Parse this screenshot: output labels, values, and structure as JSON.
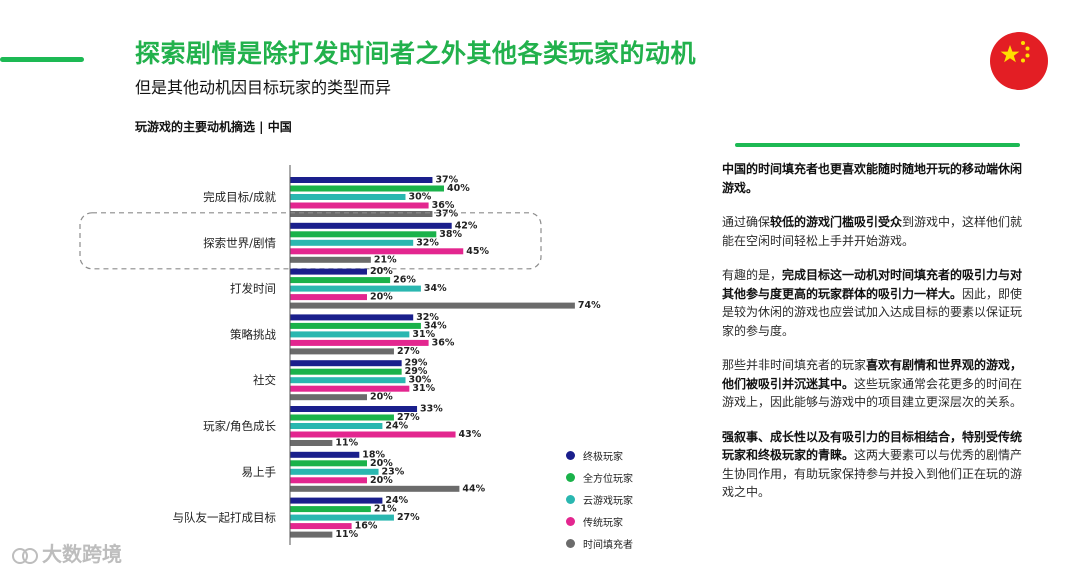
{
  "header": {
    "title": "探索剧情是除打发时间者之外其他各类玩家的动机",
    "subtitle": "但是其他动机因目标玩家的类型而异"
  },
  "chart_data": {
    "type": "bar",
    "orientation": "horizontal",
    "title": "玩游戏的主要动机摘选 | 中国",
    "categories": [
      "完成目标/成就",
      "探索世界/剧情",
      "打发时间",
      "策略挑战",
      "社交",
      "玩家/角色成长",
      "易上手",
      "与队友一起打成目标"
    ],
    "highlighted_category": "探索世界/剧情",
    "series": [
      {
        "name": "终极玩家",
        "color": "#1a1f8c",
        "values": [
          37,
          42,
          20,
          32,
          29,
          33,
          18,
          24
        ]
      },
      {
        "name": "全方位玩家",
        "color": "#1ab24a",
        "values": [
          40,
          38,
          26,
          34,
          29,
          27,
          20,
          21
        ]
      },
      {
        "name": "云游戏玩家",
        "color": "#2ab7b0",
        "values": [
          30,
          32,
          34,
          31,
          30,
          24,
          23,
          27
        ]
      },
      {
        "name": "传统玩家",
        "color": "#e3268f",
        "values": [
          36,
          45,
          20,
          36,
          31,
          43,
          20,
          16
        ]
      },
      {
        "name": "时间填充者",
        "color": "#6b6b6b",
        "values": [
          37,
          21,
          74,
          27,
          20,
          11,
          44,
          11
        ]
      }
    ],
    "value_suffix": "%",
    "xlim": [
      0,
      75
    ],
    "legend_position": "bottom-right"
  },
  "panel": {
    "p1_b": "中国的时间填充者也更喜欢能随时随地开玩的移动端休闲游戏。",
    "p2_a": "通过确保",
    "p2_b": "较低的游戏门槛吸引受众",
    "p2_c": "到游戏中，这样他们就能在空闲时间轻松上手并开始游戏。",
    "p3_a": "有趣的是，",
    "p3_b": "完成目标这一动机对时间填充者的吸引力与对其他参与度更高的玩家群体的吸引力一样大。",
    "p3_c": "因此，即使是较为休闲的游戏也应尝试加入达成目标的要素以保证玩家的参与度。",
    "p4_a": "那些并非时间填充者的玩家",
    "p4_b": "喜欢有剧情和世界观的游戏，他们被吸引并沉迷其中。",
    "p4_c": "这些玩家通常会花更多的时间在游戏上，因此能够与游戏中的项目建立更深层次的关系。",
    "p5_b": "强叙事、成长性以及有吸引力的目标相结合，特别受传统玩家和终极玩家的青睐。",
    "p5_c": "这两大要素可以与优秀的剧情产生协同作用，有助玩家保持参与并投入到他们正在玩的游戏之中。"
  },
  "watermark": {
    "text": "大数跨境"
  },
  "flag": {
    "name": "china-flag",
    "red": "#e31e24",
    "star": "#ffde00"
  }
}
